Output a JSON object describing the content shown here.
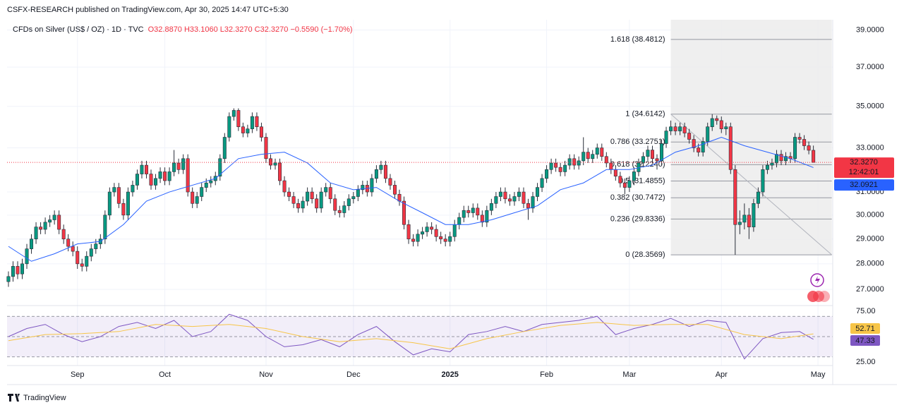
{
  "header": {
    "text": "CSFX-RESEARCH published on TradingView.com, Apr 30, 2025 14:47 UTC+5:30"
  },
  "footer": {
    "brand": "TradingView"
  },
  "chart_data": {
    "type": "candlestick",
    "title": "CFDs on Silver (US$ / OZ) · 1D · TVC",
    "ohlc_text": "O32.8870 H33.1060 L32.3270 C32.3270 −0.5590 (−1.70%)",
    "up_color": "#089981",
    "down_color": "#f23645",
    "log_scale": true,
    "grid": true,
    "ylim": [
      26.47,
      39.57
    ],
    "yticks": [
      {
        "value": 39,
        "label": "39.0000"
      },
      {
        "value": 37,
        "label": "37.0000"
      },
      {
        "value": 35,
        "label": "35.0000"
      },
      {
        "value": 33,
        "label": "33.0000"
      },
      {
        "value": 31,
        "label": "31.0000"
      },
      {
        "value": 30,
        "label": "30.0000"
      },
      {
        "value": 29,
        "label": "29.0000"
      },
      {
        "value": 28,
        "label": "28.0000"
      },
      {
        "value": 27,
        "label": "27.0000"
      }
    ],
    "xlim": [
      -0.3,
      179.2
    ],
    "xticks": [
      {
        "value": 15,
        "label": "Sep"
      },
      {
        "value": 34,
        "label": "Oct"
      },
      {
        "value": 56,
        "label": "Nov"
      },
      {
        "value": 75,
        "label": "Dec"
      },
      {
        "value": 96,
        "label": "2025"
      },
      {
        "value": 117,
        "label": "Feb"
      },
      {
        "value": 135,
        "label": "Mar"
      },
      {
        "value": 155,
        "label": "Apr"
      },
      {
        "value": 176,
        "label": "May"
      }
    ],
    "open": [
      27.3,
      27.5,
      27.9,
      27.6,
      28.0,
      28.6,
      29.0,
      29.5,
      29.4,
      29.7,
      29.8,
      30.0,
      29.4,
      29.0,
      28.7,
      28.5,
      28.0,
      27.9,
      28.3,
      28.6,
      28.8,
      29.0,
      30.0,
      31.0,
      31.2,
      30.5,
      30.0,
      31.0,
      31.3,
      31.8,
      32.2,
      31.8,
      31.3,
      31.6,
      31.9,
      31.5,
      31.9,
      32.3,
      32.0,
      32.5,
      31.0,
      30.5,
      30.8,
      31.2,
      31.4,
      31.5,
      31.7,
      32.5,
      33.5,
      34.5,
      34.8,
      34.0,
      33.7,
      33.9,
      34.5,
      34.0,
      33.5,
      32.5,
      32.2,
      32.3,
      31.5,
      31.0,
      30.8,
      30.5,
      30.3,
      30.6,
      31.0,
      30.7,
      30.3,
      31.0,
      31.2,
      30.7,
      30.2,
      30.1,
      30.4,
      30.7,
      30.8,
      31.1,
      31.3,
      31.0,
      31.6,
      32.0,
      32.2,
      31.6,
      31.3,
      30.9,
      30.6,
      29.6,
      29.0,
      28.9,
      29.2,
      29.3,
      29.5,
      29.4,
      29.1,
      29.0,
      28.9,
      29.1,
      29.6,
      29.9,
      30.2,
      30.1,
      30.3,
      30.0,
      29.7,
      30.2,
      30.5,
      30.8,
      31.0,
      30.7,
      30.6,
      30.8,
      31.0,
      30.5,
      30.3,
      30.8,
      31.2,
      31.6,
      32.0,
      32.3,
      32.1,
      31.9,
      32.2,
      32.5,
      32.2,
      32.4,
      32.8,
      32.5,
      32.7,
      33.0,
      32.6,
      32.3,
      32.0,
      31.7,
      31.4,
      31.2,
      31.5,
      31.9,
      32.3,
      32.6,
      32.9,
      32.5,
      32.4,
      33.2,
      33.8,
      34.0,
      33.8,
      34.0,
      33.7,
      33.4,
      33.0,
      32.8,
      33.3,
      34.0,
      34.4,
      34.3,
      33.9,
      34.0,
      32.0,
      29.6,
      29.7,
      30.0,
      29.5,
      30.5,
      31.0,
      32.0,
      32.2,
      32.3,
      32.7,
      32.4,
      32.6,
      32.5,
      33.5,
      33.4,
      33.1,
      32.887
    ],
    "high": [
      27.7,
      28.1,
      28.1,
      28.2,
      28.8,
      29.2,
      29.7,
      29.7,
      29.9,
      30.0,
      30.2,
      30.2,
      29.6,
      29.2,
      28.9,
      28.7,
      28.2,
      28.5,
      28.8,
      29.0,
      29.2,
      30.2,
      31.2,
      31.4,
      31.4,
      30.7,
      31.2,
      31.5,
      32.0,
      32.4,
      32.4,
      32.0,
      31.8,
      32.1,
      32.1,
      32.1,
      32.9,
      32.5,
      32.7,
      32.7,
      31.2,
      31.0,
      31.4,
      31.6,
      31.7,
      31.9,
      32.7,
      33.7,
      34.7,
      34.9,
      34.9,
      34.2,
      34.1,
      34.7,
      34.7,
      34.2,
      33.7,
      32.7,
      32.5,
      32.5,
      31.7,
      31.2,
      31.0,
      30.7,
      30.8,
      31.2,
      31.2,
      30.9,
      31.2,
      31.4,
      31.4,
      30.9,
      30.4,
      30.6,
      30.9,
      31.0,
      31.3,
      31.5,
      31.5,
      31.8,
      32.2,
      32.4,
      32.4,
      31.8,
      31.5,
      31.1,
      30.8,
      29.8,
      29.2,
      29.4,
      29.5,
      29.7,
      29.7,
      29.6,
      29.3,
      29.2,
      29.3,
      29.8,
      30.1,
      30.4,
      30.4,
      30.5,
      30.5,
      30.2,
      30.4,
      30.7,
      31.0,
      31.2,
      31.2,
      30.9,
      31.0,
      31.2,
      31.2,
      30.7,
      31.0,
      31.4,
      31.8,
      32.2,
      32.5,
      32.5,
      32.3,
      32.4,
      32.7,
      32.7,
      32.6,
      33.5,
      33.0,
      32.9,
      33.2,
      33.2,
      32.8,
      32.5,
      32.2,
      31.9,
      31.6,
      31.7,
      32.1,
      32.5,
      32.8,
      33.1,
      33.1,
      32.7,
      33.4,
      34.0,
      34.3,
      34.2,
      34.2,
      34.2,
      33.9,
      33.6,
      33.2,
      33.5,
      34.2,
      34.6142,
      34.55,
      34.5,
      34.2,
      34.2,
      32.2,
      30.2,
      30.5,
      30.3,
      30.7,
      31.2,
      32.2,
      32.4,
      32.5,
      32.9,
      32.9,
      32.8,
      32.8,
      33.7,
      33.7,
      33.6,
      33.3,
      33.106
    ],
    "low": [
      27.1,
      27.3,
      27.4,
      27.4,
      27.8,
      28.4,
      28.8,
      29.2,
      29.2,
      29.5,
      29.6,
      29.2,
      28.8,
      28.5,
      28.3,
      27.8,
      27.7,
      27.7,
      28.1,
      28.4,
      28.6,
      28.8,
      29.8,
      30.8,
      30.3,
      29.8,
      29.8,
      30.8,
      31.1,
      31.6,
      31.6,
      31.1,
      31.1,
      31.4,
      31.3,
      31.3,
      31.7,
      31.8,
      31.8,
      30.8,
      30.3,
      30.3,
      30.6,
      31.0,
      31.2,
      31.3,
      31.5,
      32.3,
      33.3,
      34.3,
      33.8,
      33.5,
      33.5,
      33.7,
      33.8,
      33.3,
      32.3,
      32.0,
      32.0,
      31.3,
      30.8,
      30.6,
      30.3,
      30.1,
      30.1,
      30.4,
      30.5,
      30.1,
      30.1,
      30.8,
      30.5,
      30.0,
      29.9,
      29.9,
      30.2,
      30.5,
      30.6,
      30.9,
      30.8,
      30.8,
      31.4,
      31.8,
      31.4,
      31.1,
      30.7,
      30.4,
      29.4,
      28.8,
      28.7,
      28.7,
      29.0,
      29.1,
      29.2,
      28.9,
      28.8,
      28.7,
      28.7,
      28.9,
      29.4,
      29.7,
      29.9,
      29.9,
      29.8,
      29.5,
      29.5,
      30.0,
      30.3,
      30.6,
      30.5,
      30.4,
      30.4,
      30.6,
      30.3,
      29.8,
      30.1,
      30.6,
      31.0,
      31.4,
      31.8,
      31.9,
      31.7,
      31.7,
      32.0,
      32.0,
      32.0,
      32.2,
      32.3,
      32.3,
      32.5,
      32.4,
      32.1,
      31.8,
      31.5,
      31.2,
      30.9,
      31.0,
      31.3,
      31.7,
      32.1,
      32.4,
      32.3,
      32.0,
      32.2,
      33.0,
      33.6,
      33.6,
      33.6,
      33.5,
      33.2,
      32.8,
      32.6,
      32.6,
      33.1,
      33.8,
      34.1,
      33.7,
      33.6,
      31.8,
      28.3569,
      29.2,
      29.4,
      29.0,
      29.3,
      30.3,
      30.8,
      31.8,
      32.0,
      32.1,
      32.2,
      32.2,
      32.3,
      32.3,
      33.2,
      32.9,
      32.7,
      32.327
    ],
    "close": [
      27.5,
      27.9,
      27.6,
      28.0,
      28.6,
      29.0,
      29.5,
      29.4,
      29.7,
      29.8,
      30.0,
      29.4,
      29.0,
      28.7,
      28.5,
      28.0,
      27.9,
      28.3,
      28.6,
      28.8,
      29.0,
      30.0,
      31.0,
      31.2,
      30.5,
      30.0,
      31.0,
      31.3,
      31.8,
      32.2,
      31.8,
      31.3,
      31.6,
      31.9,
      31.5,
      31.9,
      32.3,
      32.0,
      32.5,
      31.0,
      30.5,
      30.8,
      31.2,
      31.4,
      31.5,
      31.7,
      32.5,
      33.5,
      34.5,
      34.8,
      34.0,
      33.7,
      33.9,
      34.5,
      34.0,
      33.5,
      32.5,
      32.2,
      32.3,
      31.5,
      31.0,
      30.8,
      30.5,
      30.3,
      30.6,
      31.0,
      30.7,
      30.3,
      31.0,
      31.2,
      30.7,
      30.2,
      30.1,
      30.4,
      30.7,
      30.8,
      31.1,
      31.3,
      31.0,
      31.6,
      32.0,
      32.2,
      31.6,
      31.3,
      30.9,
      30.6,
      29.6,
      29.0,
      28.9,
      29.2,
      29.3,
      29.5,
      29.4,
      29.1,
      29.0,
      28.9,
      29.1,
      29.6,
      29.9,
      30.2,
      30.1,
      30.3,
      30.0,
      29.7,
      30.2,
      30.5,
      30.8,
      31.0,
      30.7,
      30.6,
      30.8,
      31.0,
      30.5,
      30.3,
      30.8,
      31.2,
      31.6,
      32.0,
      32.3,
      32.1,
      31.9,
      32.2,
      32.5,
      32.2,
      32.4,
      32.8,
      32.5,
      32.7,
      33.0,
      32.6,
      32.3,
      32.0,
      31.7,
      31.4,
      31.2,
      31.5,
      31.9,
      32.3,
      32.6,
      32.9,
      32.5,
      32.4,
      33.2,
      33.8,
      34.0,
      33.8,
      34.0,
      33.7,
      33.4,
      33.0,
      32.8,
      33.3,
      34.0,
      34.4,
      34.3,
      33.9,
      34.0,
      32.0,
      29.6,
      29.7,
      30.0,
      29.5,
      30.5,
      31.0,
      32.0,
      32.2,
      32.3,
      32.7,
      32.4,
      32.6,
      32.5,
      33.5,
      33.4,
      33.1,
      32.887,
      32.327
    ],
    "last_label": "32.3270",
    "countdown": "12:42:01",
    "moving_average": {
      "color": "#2962ff",
      "last_label": "32.0921",
      "x": [
        0,
        5,
        10,
        15,
        20,
        25,
        30,
        35,
        40,
        45,
        50,
        55,
        60,
        65,
        70,
        75,
        80,
        85,
        90,
        95,
        100,
        105,
        110,
        115,
        120,
        125,
        130,
        135,
        140,
        145,
        150,
        155,
        160,
        165,
        170,
        175
      ],
      "values": [
        28.7,
        28.1,
        28.4,
        28.8,
        28.9,
        29.6,
        30.6,
        31.0,
        31.3,
        31.6,
        32.5,
        32.7,
        32.8,
        32.3,
        31.4,
        31.1,
        31.2,
        30.6,
        30.1,
        29.6,
        29.6,
        29.8,
        30.1,
        30.4,
        31.1,
        31.4,
        32.0,
        32.0,
        32.2,
        32.8,
        33.1,
        33.5,
        33.1,
        32.8,
        32.5,
        32.0921
      ]
    },
    "fibonacci": {
      "x": [
        144,
        179
      ],
      "color": "#9598a1",
      "levels": [
        {
          "value": 38.4812,
          "label": "1.618 (38.4812)"
        },
        {
          "value": 34.6142,
          "label": "1 (34.6142)"
        },
        {
          "value": 33.2751,
          "label": "0.786 (33.2751)"
        },
        {
          "value": 32.224,
          "label": "0.618 (32.2240)"
        },
        {
          "value": 31.4855,
          "label": "0.5 (31.4855)"
        },
        {
          "value": 30.7472,
          "label": "0.382 (30.7472)"
        },
        {
          "value": 29.8336,
          "label": "0.236 (29.8336)"
        },
        {
          "value": 28.3569,
          "label": "0 (28.3569)"
        }
      ]
    },
    "rsi": {
      "ylim": [
        21.5,
        79.2
      ],
      "yticks": [
        {
          "value": 75,
          "label": "75.00"
        },
        {
          "value": 25,
          "label": "25.00"
        }
      ],
      "bands": [
        70,
        50,
        30
      ],
      "series": [
        {
          "color": "#7e57c2",
          "last_label": "47.33",
          "x": [
            0,
            4,
            8,
            12,
            16,
            20,
            24,
            28,
            32,
            36,
            40,
            44,
            48,
            52,
            56,
            60,
            64,
            68,
            72,
            76,
            80,
            84,
            88,
            92,
            96,
            100,
            104,
            108,
            112,
            116,
            120,
            124,
            128,
            132,
            136,
            140,
            144,
            148,
            152,
            156,
            160,
            164,
            168,
            172,
            175
          ],
          "values": [
            50,
            58,
            62,
            52,
            45,
            50,
            60,
            64,
            58,
            66,
            50,
            55,
            72,
            66,
            50,
            40,
            42,
            47,
            40,
            52,
            60,
            45,
            32,
            38,
            35,
            52,
            55,
            60,
            55,
            62,
            64,
            66,
            70,
            52,
            58,
            62,
            68,
            60,
            66,
            64,
            28,
            48,
            54,
            55,
            47.33
          ]
        },
        {
          "color": "#f7c548",
          "last_label": "52.71",
          "x": [
            0,
            8,
            16,
            24,
            32,
            40,
            48,
            56,
            64,
            72,
            80,
            88,
            96,
            104,
            112,
            120,
            128,
            136,
            144,
            152,
            160,
            168,
            175
          ],
          "values": [
            46,
            52,
            53,
            55,
            62,
            60,
            62,
            58,
            50,
            45,
            48,
            44,
            38,
            48,
            55,
            61,
            64,
            61,
            62,
            62,
            52,
            48,
            52.71
          ]
        }
      ]
    }
  }
}
